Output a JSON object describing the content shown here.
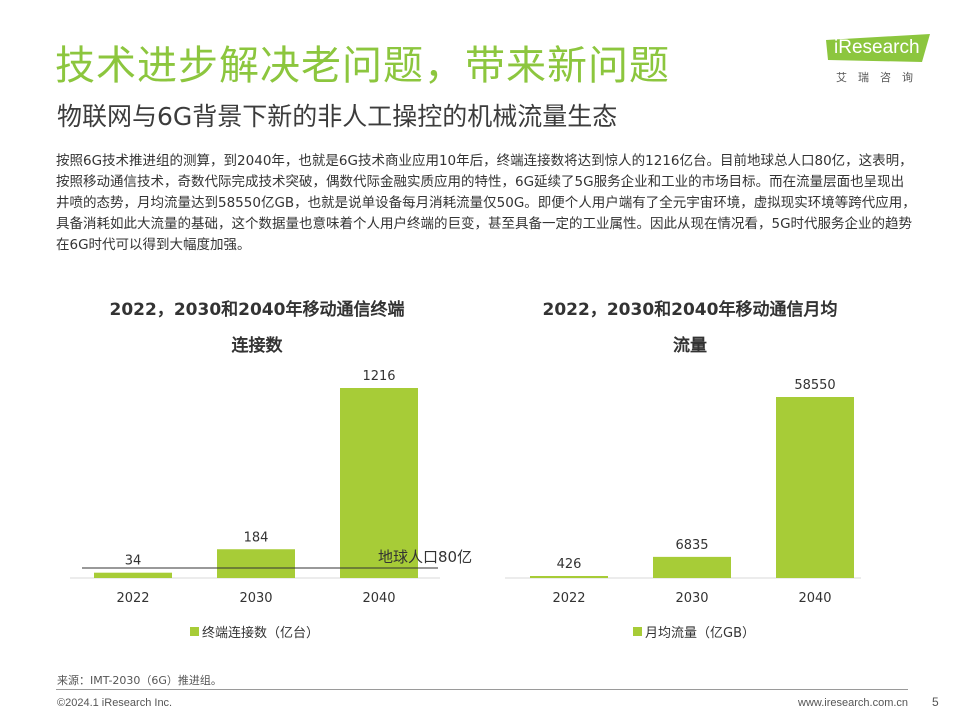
{
  "page": {
    "title": "技术进步解决老问题，带来新问题",
    "subtitle": "物联网与6G背景下新的非人工操控的机械流量生态",
    "body": "按照6G技术推进组的测算，到2040年，也就是6G技术商业应用10年后，终端连接数将达到惊人的1216亿台。目前地球总人口80亿，这表明，按照移动通信技术，奇数代际完成技术突破，偶数代际金融实质应用的特性，6G延续了5G服务企业和工业的市场目标。而在流量层面也呈现出井喷的态势，月均流量达到58550亿GB，也就是说单设备每月消耗流量仅50G。即便个人用户端有了全元宇宙环境，虚拟现实环境等跨代应用，具备消耗如此大流量的基础，这个数据量也意味着个人用户终端的巨变，甚至具备一定的工业属性。因此从现在情况看，5G时代服务企业的趋势在6G时代可以得到大幅度加强。",
    "source": "来源：IMT-2030（6G）推进组。",
    "copyright": "©2024.1 iResearch Inc.",
    "website": "www.iresearch.com.cn",
    "page_number": "5"
  },
  "logo": {
    "name": "iResearch",
    "cn": "艾瑞咨询",
    "color": "#8cc63e"
  },
  "colors": {
    "accent": "#8cc63e",
    "bar": "#a7cc37"
  },
  "chart_data": [
    {
      "type": "bar",
      "title_line1": "2022，2030和2040年移动通信终端",
      "title_line2": "连接数",
      "categories": [
        "2022",
        "2030",
        "2040"
      ],
      "values": [
        34,
        184,
        1216
      ],
      "value_labels": [
        "34",
        "184",
        "1216"
      ],
      "ylim": [
        0,
        1216
      ],
      "legend": "终端连接数（亿台）",
      "reference_line": {
        "value": 80,
        "label": "地球人口80亿"
      }
    },
    {
      "type": "bar",
      "title_line1": "2022，2030和2040年移动通信月均",
      "title_line2": "流量",
      "categories": [
        "2022",
        "2030",
        "2040"
      ],
      "values": [
        426,
        6835,
        58550
      ],
      "value_labels": [
        "426",
        "6835",
        "58550"
      ],
      "ylim": [
        0,
        58550
      ],
      "legend": "月均流量（亿GB）"
    }
  ]
}
